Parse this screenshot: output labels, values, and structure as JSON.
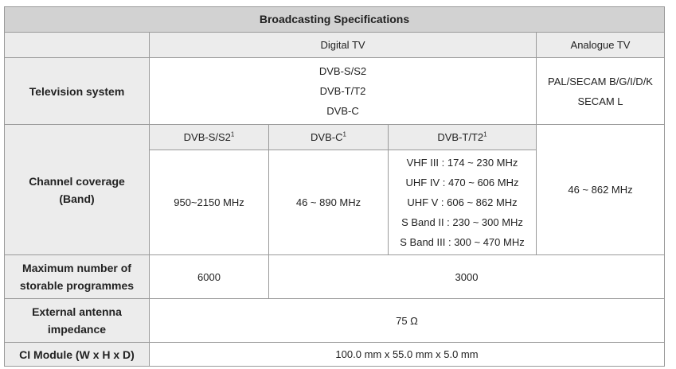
{
  "title": "Broadcasting Specifications",
  "columns": {
    "digital": "Digital TV",
    "analogue": "Analogue TV"
  },
  "television_system": {
    "label": "Television system",
    "digital": [
      "DVB-S/S2",
      "DVB-T/T2",
      "DVB-C"
    ],
    "analogue": [
      "PAL/SECAM B/G/I/D/K",
      "SECAM L"
    ]
  },
  "channel_coverage": {
    "label_line1": "Channel coverage",
    "label_line2": "(Band)",
    "sub_headers": {
      "dvbs": "DVB-S/S2",
      "dvbc": "DVB-C",
      "dvbt": "DVB-T/T2",
      "footnote": "1"
    },
    "dvbs_value": "950~2150 MHz",
    "dvbc_value": "46 ~ 890 MHz",
    "dvbt_values": [
      "VHF III : 174 ~ 230 MHz",
      "UHF IV : 470 ~ 606 MHz",
      "UHF V : 606 ~ 862 MHz",
      "S Band II : 230 ~ 300 MHz",
      "S Band III : 300 ~ 470 MHz"
    ],
    "analogue_value": "46 ~ 862 MHz"
  },
  "max_programmes": {
    "label_line1": "Maximum number of",
    "label_line2": "storable programmes",
    "dvbs_value": "6000",
    "other_value": "3000"
  },
  "antenna": {
    "label_line1": "External antenna",
    "label_line2": "impedance",
    "value": "75 Ω"
  },
  "ci_module": {
    "label": "CI Module (W x H x D)",
    "value": "100.0 mm x 55.0 mm x 5.0 mm"
  }
}
